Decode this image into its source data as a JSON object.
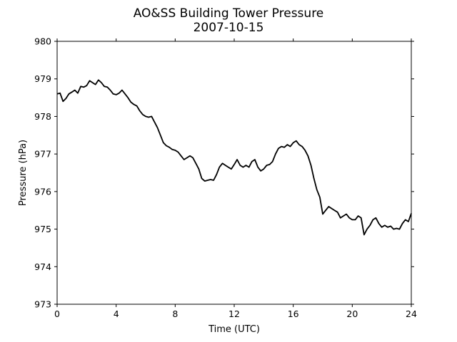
{
  "chart_data": {
    "type": "line",
    "title": "AO&SS Building Tower Pressure",
    "subtitle": "2007-10-15",
    "xlabel": "Time (UTC)",
    "ylabel": "Pressure (hPa)",
    "xlim": [
      0,
      24
    ],
    "ylim": [
      973,
      980
    ],
    "xticks": [
      0,
      4,
      8,
      12,
      16,
      20,
      24
    ],
    "yticks": [
      973,
      974,
      975,
      976,
      977,
      978,
      979,
      980
    ],
    "grid": false,
    "line_color": "#000000",
    "series": [
      {
        "x": [
          0,
          0.2,
          0.4,
          0.6,
          0.8,
          1.0,
          1.2,
          1.4,
          1.6,
          1.8,
          2.0,
          2.2,
          2.4,
          2.6,
          2.8,
          3.0,
          3.2,
          3.4,
          3.6,
          3.8,
          4.0,
          4.2,
          4.4,
          4.6,
          4.8,
          5.0,
          5.2,
          5.4,
          5.6,
          5.8,
          6.0,
          6.2,
          6.4,
          6.6,
          6.8,
          7.0,
          7.2,
          7.4,
          7.6,
          7.8,
          8.0,
          8.2,
          8.4,
          8.6,
          8.8,
          9.0,
          9.2,
          9.4,
          9.6,
          9.8,
          10.0,
          10.2,
          10.4,
          10.6,
          10.8,
          11.0,
          11.2,
          11.4,
          11.6,
          11.8,
          12.0,
          12.2,
          12.4,
          12.6,
          12.8,
          13.0,
          13.2,
          13.4,
          13.6,
          13.8,
          14.0,
          14.2,
          14.4,
          14.6,
          14.8,
          15.0,
          15.2,
          15.4,
          15.6,
          15.8,
          16.0,
          16.2,
          16.4,
          16.6,
          16.8,
          17.0,
          17.2,
          17.4,
          17.6,
          17.8,
          18.0,
          18.2,
          18.4,
          18.6,
          18.8,
          19.0,
          19.2,
          19.4,
          19.6,
          19.8,
          20.0,
          20.2,
          20.4,
          20.6,
          20.8,
          21.0,
          21.2,
          21.4,
          21.6,
          21.8,
          22.0,
          22.2,
          22.4,
          22.6,
          22.8,
          23.0,
          23.2,
          23.4,
          23.6,
          23.8,
          24.0
        ],
        "y": [
          978.6,
          978.62,
          978.4,
          978.48,
          978.6,
          978.65,
          978.7,
          978.62,
          978.8,
          978.78,
          978.82,
          978.95,
          978.9,
          978.85,
          978.97,
          978.9,
          978.8,
          978.78,
          978.7,
          978.6,
          978.58,
          978.62,
          978.7,
          978.6,
          978.5,
          978.38,
          978.32,
          978.28,
          978.15,
          978.05,
          978.0,
          977.98,
          978.0,
          977.85,
          977.7,
          977.5,
          977.3,
          977.22,
          977.18,
          977.12,
          977.1,
          977.05,
          976.95,
          976.85,
          976.9,
          976.95,
          976.9,
          976.75,
          976.6,
          976.35,
          976.28,
          976.3,
          976.32,
          976.3,
          976.45,
          976.65,
          976.75,
          976.7,
          976.65,
          976.6,
          976.72,
          976.85,
          976.7,
          976.65,
          976.7,
          976.65,
          976.8,
          976.85,
          976.65,
          976.55,
          976.6,
          976.7,
          976.72,
          976.8,
          977.0,
          977.15,
          977.2,
          977.18,
          977.25,
          977.2,
          977.3,
          977.35,
          977.25,
          977.2,
          977.1,
          976.95,
          976.7,
          976.35,
          976.05,
          975.85,
          975.4,
          975.5,
          975.6,
          975.55,
          975.5,
          975.45,
          975.3,
          975.35,
          975.4,
          975.3,
          975.25,
          975.25,
          975.35,
          975.3,
          974.85,
          975.0,
          975.1,
          975.25,
          975.3,
          975.15,
          975.05,
          975.1,
          975.05,
          975.08,
          975.0,
          975.02,
          975.0,
          975.15,
          975.25,
          975.2,
          975.42
        ]
      }
    ]
  }
}
